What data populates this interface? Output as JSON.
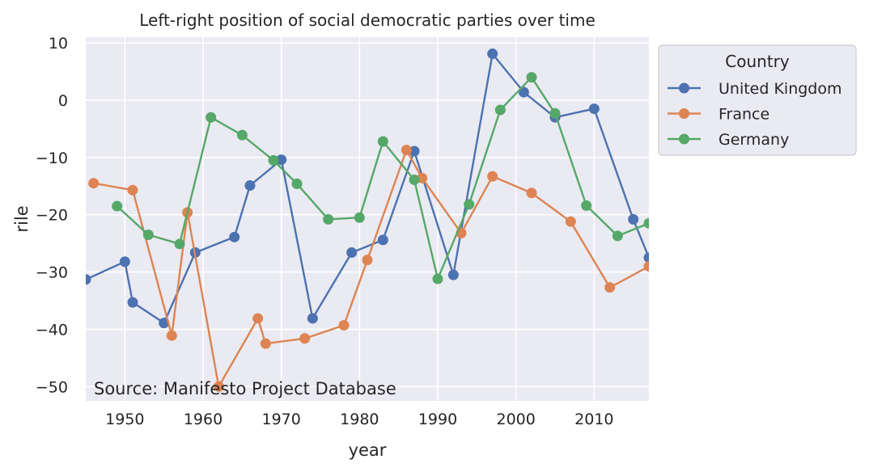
{
  "chart_data": {
    "type": "line",
    "title": "Left-right position of social democratic parties over time",
    "xlabel": "year",
    "ylabel": "rile",
    "xlim": [
      1945,
      2017
    ],
    "ylim": [
      -52.5,
      11
    ],
    "xticks": [
      1950,
      1960,
      1970,
      1980,
      1990,
      2000,
      2010
    ],
    "yticks": [
      10,
      0,
      -10,
      -20,
      -30,
      -40,
      -50
    ],
    "xtick_labels": [
      "1950",
      "1960",
      "1970",
      "1980",
      "1990",
      "2000",
      "2010"
    ],
    "ytick_labels": [
      "10",
      "0",
      "−10",
      "−20",
      "−30",
      "−40",
      "−50"
    ],
    "grid": true,
    "legend": {
      "title": "Country",
      "placement": "outside-top-right"
    },
    "annotation": "Source: Manifesto Project Database",
    "series": [
      {
        "name": "United Kingdom",
        "color": "#4c72b0",
        "x": [
          1945,
          1950,
          1951,
          1955,
          1959,
          1964,
          1966,
          1970,
          1974,
          1979,
          1983,
          1987,
          1992,
          1997,
          2001,
          2005,
          2010,
          2015,
          2017
        ],
        "y": [
          -31.3,
          -28.2,
          -35.3,
          -38.9,
          -26.6,
          -23.9,
          -14.9,
          -10.4,
          -38.1,
          -26.6,
          -24.4,
          -8.9,
          -30.5,
          8.1,
          1.4,
          -3.0,
          -1.5,
          -20.8,
          -27.5
        ]
      },
      {
        "name": "France",
        "color": "#dd8452",
        "x": [
          1946,
          1951,
          1956,
          1958,
          1962,
          1967,
          1968,
          1973,
          1978,
          1981,
          1986,
          1988,
          1993,
          1997,
          2002,
          2007,
          2012,
          2017
        ],
        "y": [
          -14.5,
          -15.7,
          -41.1,
          -19.6,
          -50.0,
          -38.1,
          -42.5,
          -41.6,
          -39.3,
          -27.9,
          -8.7,
          -13.6,
          -23.2,
          -13.3,
          -16.2,
          -21.2,
          -32.7,
          -29.0
        ]
      },
      {
        "name": "Germany",
        "color": "#55a868",
        "x": [
          1949,
          1953,
          1957,
          1961,
          1965,
          1969,
          1972,
          1976,
          1980,
          1983,
          1987,
          1990,
          1994,
          1998,
          2002,
          2005,
          2009,
          2013,
          2017
        ],
        "y": [
          -18.5,
          -23.5,
          -25.1,
          -3.0,
          -6.1,
          -10.5,
          -14.6,
          -20.8,
          -20.5,
          -7.2,
          -13.9,
          -31.2,
          -18.2,
          -1.7,
          4.0,
          -2.3,
          -18.4,
          -23.7,
          -21.5
        ]
      }
    ]
  }
}
